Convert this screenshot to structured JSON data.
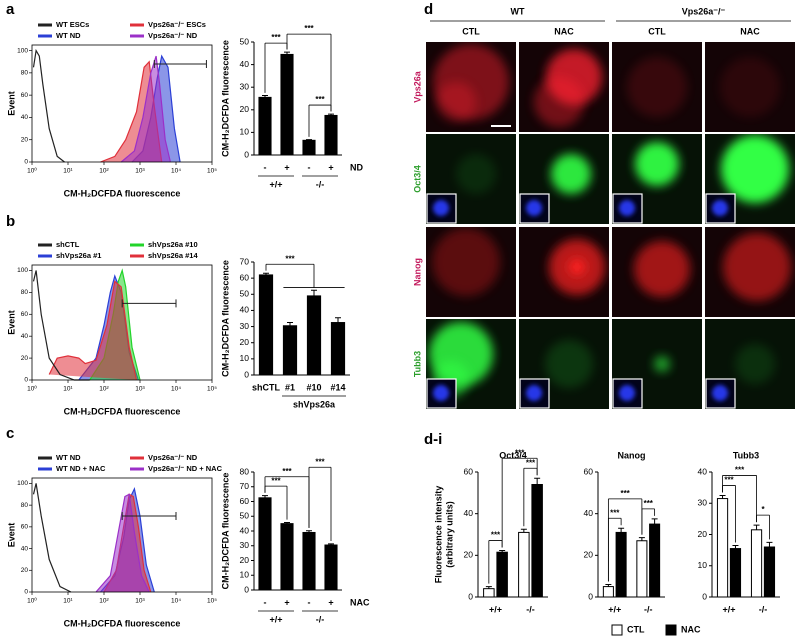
{
  "panel_labels": {
    "a": "a",
    "b": "b",
    "c": "c",
    "d": "d",
    "di": "d-i"
  },
  "micrograph": {
    "genotypes": [
      "WT",
      "Vps26a⁻/⁻"
    ],
    "treatments": [
      "CTL",
      "NAC",
      "CTL",
      "NAC"
    ],
    "stains": [
      "Vps26a",
      "Oct3/4",
      "Nanog",
      "Tubb3"
    ],
    "stain_colors": [
      "#c2185b",
      "#2a9d2a",
      "#c2185b",
      "#2a9d2a"
    ]
  },
  "chart_data": [
    {
      "type": "histogram",
      "xlabel": "CM-H₂DCFDA fluorescence",
      "ylabel": "Event",
      "xscale": "log",
      "xlim": [
        1,
        100000
      ],
      "ylim": [
        0,
        105
      ],
      "xticks": [
        {
          "value": 1,
          "label": "10⁰"
        },
        {
          "value": 10,
          "label": "10¹"
        },
        {
          "value": 100,
          "label": "10²"
        },
        {
          "value": 1000,
          "label": "10³"
        },
        {
          "value": 10000,
          "label": "10⁴"
        },
        {
          "value": 100000,
          "label": "10⁵"
        }
      ],
      "yticks": [
        0,
        20,
        40,
        60,
        80,
        100
      ],
      "gate": {
        "x": [
          2500,
          70000
        ],
        "y": 88
      },
      "series": [
        {
          "name": "WT ESCs",
          "color": "#222222",
          "filled": false,
          "x": [
            1.1,
            1.3,
            1.6,
            2,
            3,
            5,
            8
          ],
          "values": [
            85,
            100,
            95,
            70,
            30,
            5,
            0
          ]
        },
        {
          "name": "WT ND",
          "color": "#2b3fd6",
          "filled": true,
          "x": [
            600,
            1200,
            2000,
            3000,
            4000,
            6000,
            9000,
            13000
          ],
          "values": [
            0,
            10,
            40,
            75,
            95,
            85,
            30,
            0
          ]
        },
        {
          "name": "Vps26a⁻/⁻ ESCs",
          "color": "#e0303a",
          "filled": true,
          "x": [
            80,
            200,
            400,
            800,
            1300,
            1800,
            2500,
            4000
          ],
          "values": [
            0,
            5,
            20,
            45,
            85,
            90,
            50,
            0
          ]
        },
        {
          "name": "Vps26a⁻/⁻ ND",
          "color": "#9b30c8",
          "filled": true,
          "x": [
            300,
            700,
            1200,
            2000,
            2800,
            3500,
            5000,
            7000
          ],
          "values": [
            0,
            10,
            40,
            80,
            95,
            70,
            20,
            0
          ]
        }
      ]
    },
    {
      "type": "bar",
      "ylabel": "CM-H₂DCFDA fluorescence",
      "color": "#000000",
      "categories": [
        "-",
        "+",
        "-",
        "+"
      ],
      "values": [
        25.5,
        44.5,
        6.5,
        17.5
      ],
      "errors": [
        0.8,
        1,
        0.3,
        0.6
      ],
      "ylim": [
        0,
        50
      ],
      "yticks": [
        0,
        10,
        20,
        30,
        40,
        50
      ],
      "groups": [
        {
          "label": "+/+",
          "from": 0,
          "to": 1
        },
        {
          "label": "-/-",
          "from": 2,
          "to": 3
        }
      ],
      "row_label": "ND",
      "annotations": [
        {
          "label": "***",
          "from": 0,
          "to": 1
        },
        {
          "label": "***",
          "from": 2,
          "to": 3
        },
        {
          "label": "***",
          "from": 1,
          "to": 3
        }
      ]
    },
    {
      "type": "histogram",
      "xlabel": "CM-H₂DCFDA fluorescence",
      "ylabel": "Event",
      "xscale": "log",
      "xlim": [
        1,
        100000
      ],
      "ylim": [
        0,
        105
      ],
      "xticks": [
        {
          "value": 1,
          "label": "10⁰"
        },
        {
          "value": 10,
          "label": "10¹"
        },
        {
          "value": 100,
          "label": "10²"
        },
        {
          "value": 1000,
          "label": "10³"
        },
        {
          "value": 10000,
          "label": "10⁴"
        },
        {
          "value": 100000,
          "label": "10⁵"
        }
      ],
      "yticks": [
        0,
        20,
        40,
        60,
        80,
        100
      ],
      "gate": {
        "x": [
          320,
          10000
        ],
        "y": 70
      },
      "series": [
        {
          "name": "shCTL",
          "color": "#222222",
          "filled": false,
          "x": [
            1.1,
            1.3,
            1.8,
            3,
            6,
            15,
            40
          ],
          "values": [
            90,
            100,
            60,
            20,
            5,
            0,
            0
          ]
        },
        {
          "name": "shVps26a #1",
          "color": "#2b3fd6",
          "filled": true,
          "x": [
            20,
            60,
            100,
            150,
            200,
            300,
            500,
            900
          ],
          "values": [
            0,
            20,
            50,
            80,
            95,
            80,
            25,
            0
          ]
        },
        {
          "name": "shVps26a #10",
          "color": "#22d42a",
          "filled": true,
          "x": [
            40,
            100,
            180,
            250,
            320,
            400,
            600,
            1000
          ],
          "values": [
            0,
            20,
            60,
            90,
            100,
            85,
            30,
            0
          ]
        },
        {
          "name": "shVps26a #14",
          "color": "#e0303a",
          "filled": true,
          "x": [
            3,
            5,
            10,
            20,
            30,
            60,
            120,
            200,
            300,
            500,
            800
          ],
          "values": [
            5,
            20,
            22,
            20,
            15,
            18,
            50,
            90,
            85,
            30,
            0
          ]
        }
      ]
    },
    {
      "type": "bar",
      "ylabel": "CM-H₂DCFDA fluorescence",
      "color": "#000000",
      "categories": [
        "shCTL",
        "#1",
        "#10",
        "#14"
      ],
      "values": [
        62,
        30.5,
        49,
        32.5
      ],
      "errors": [
        1,
        2,
        3.5,
        3
      ],
      "ylim": [
        0,
        70
      ],
      "yticks": [
        0,
        10,
        20,
        30,
        40,
        50,
        60,
        70
      ],
      "groups": [
        {
          "label": "shVps26a",
          "from": 1,
          "to": 3
        }
      ],
      "annotations": [
        {
          "label": "***",
          "from": 0,
          "to": [
            1,
            3
          ]
        }
      ]
    },
    {
      "type": "histogram",
      "xlabel": "CM-H₂DCFDA fluorescence",
      "ylabel": "Event",
      "xscale": "log",
      "xlim": [
        1,
        100000
      ],
      "ylim": [
        0,
        105
      ],
      "xticks": [
        {
          "value": 1,
          "label": "10⁰"
        },
        {
          "value": 10,
          "label": "10¹"
        },
        {
          "value": 100,
          "label": "10²"
        },
        {
          "value": 1000,
          "label": "10³"
        },
        {
          "value": 10000,
          "label": "10⁴"
        },
        {
          "value": 100000,
          "label": "10⁵"
        }
      ],
      "yticks": [
        0,
        20,
        40,
        60,
        80,
        100
      ],
      "gate": {
        "x": [
          320,
          10000
        ],
        "y": 70
      },
      "series": [
        {
          "name": "WT ND",
          "color": "#222222",
          "filled": false,
          "x": [
            1.1,
            1.3,
            1.8,
            3,
            6,
            12
          ],
          "values": [
            90,
            100,
            70,
            30,
            5,
            0
          ]
        },
        {
          "name": "WT ND + NAC",
          "color": "#2b3fd6",
          "filled": true,
          "x": [
            80,
            200,
            350,
            500,
            700,
            1000,
            1500,
            2500
          ],
          "values": [
            0,
            15,
            50,
            85,
            95,
            70,
            25,
            0
          ]
        },
        {
          "name": "Vps26a⁻/⁻ ND",
          "color": "#e0303a",
          "filled": true,
          "x": [
            100,
            220,
            350,
            500,
            650,
            900,
            1300,
            2000
          ],
          "values": [
            0,
            20,
            60,
            90,
            88,
            60,
            20,
            0
          ]
        },
        {
          "name": "Vps26a⁻/⁻ ND + NAC",
          "color": "#9b30c8",
          "filled": true,
          "x": [
            60,
            150,
            250,
            380,
            500,
            700,
            1100,
            1800
          ],
          "values": [
            0,
            15,
            55,
            88,
            90,
            55,
            15,
            0
          ]
        }
      ]
    },
    {
      "type": "bar",
      "ylabel": "CM-H₂DCFDA fluorescence",
      "color": "#000000",
      "categories": [
        "-",
        "+",
        "-",
        "+"
      ],
      "values": [
        62.5,
        45,
        39,
        30.5
      ],
      "errors": [
        1.5,
        0.8,
        1.2,
        0.8
      ],
      "ylim": [
        0,
        80
      ],
      "yticks": [
        0,
        10,
        20,
        30,
        40,
        50,
        60,
        70,
        80
      ],
      "groups": [
        {
          "label": "+/+",
          "from": 0,
          "to": 1
        },
        {
          "label": "-/-",
          "from": 2,
          "to": 3
        }
      ],
      "row_label": "NAC",
      "annotations": [
        {
          "label": "***",
          "from": 0,
          "to": 1
        },
        {
          "label": "***",
          "from": 0,
          "to": 2
        },
        {
          "label": "***",
          "from": 2,
          "to": 3
        }
      ]
    },
    {
      "type": "grouped-bar",
      "title": "Oct3/4",
      "ylabel": [
        "Fluorescence intensity",
        "(arbitrary units)"
      ],
      "categories": [
        "+/+",
        "-/-"
      ],
      "series": [
        {
          "name": "CTL",
          "color": "#ffffff",
          "values": [
            4,
            31
          ],
          "errors": [
            1,
            1.5
          ]
        },
        {
          "name": "NAC",
          "color": "#000000",
          "values": [
            21.5,
            54
          ],
          "errors": [
            0.8,
            3
          ]
        }
      ],
      "ylim": [
        0,
        60
      ],
      "yticks": [
        0,
        20,
        40,
        60
      ],
      "annotations": [
        {
          "label": "***",
          "from": 0,
          "to": 1
        },
        {
          "label": "***",
          "from": 2,
          "to": 3
        },
        {
          "label": "***",
          "from": 1,
          "to": 3
        }
      ]
    },
    {
      "type": "grouped-bar",
      "title": "Nanog",
      "categories": [
        "+/+",
        "-/-"
      ],
      "series": [
        {
          "color": "#ffffff",
          "values": [
            5,
            27
          ],
          "errors": [
            1,
            1.5
          ]
        },
        {
          "color": "#000000",
          "values": [
            31,
            35
          ],
          "errors": [
            2,
            2.5
          ]
        }
      ],
      "ylim": [
        0,
        60
      ],
      "yticks": [
        0,
        20,
        40,
        60
      ],
      "annotations": [
        {
          "label": "***",
          "from": 0,
          "to": 1
        },
        {
          "label": "***",
          "from": 2,
          "to": 3
        },
        {
          "label": "***",
          "from": 0,
          "to": 2
        }
      ]
    },
    {
      "type": "grouped-bar",
      "title": "Tubb3",
      "categories": [
        "+/+",
        "-/-"
      ],
      "series": [
        {
          "color": "#ffffff",
          "values": [
            31.5,
            21.5
          ],
          "errors": [
            1,
            1.5
          ]
        },
        {
          "color": "#000000",
          "values": [
            15.5,
            16
          ],
          "errors": [
            1,
            1.5
          ]
        }
      ],
      "ylim": [
        0,
        40
      ],
      "yticks": [
        0,
        10,
        20,
        30,
        40
      ],
      "annotations": [
        {
          "label": "***",
          "from": 0,
          "to": 1
        },
        {
          "label": "*",
          "from": 2,
          "to": 3
        },
        {
          "label": "***",
          "from": 0,
          "to": 2
        }
      ]
    }
  ]
}
